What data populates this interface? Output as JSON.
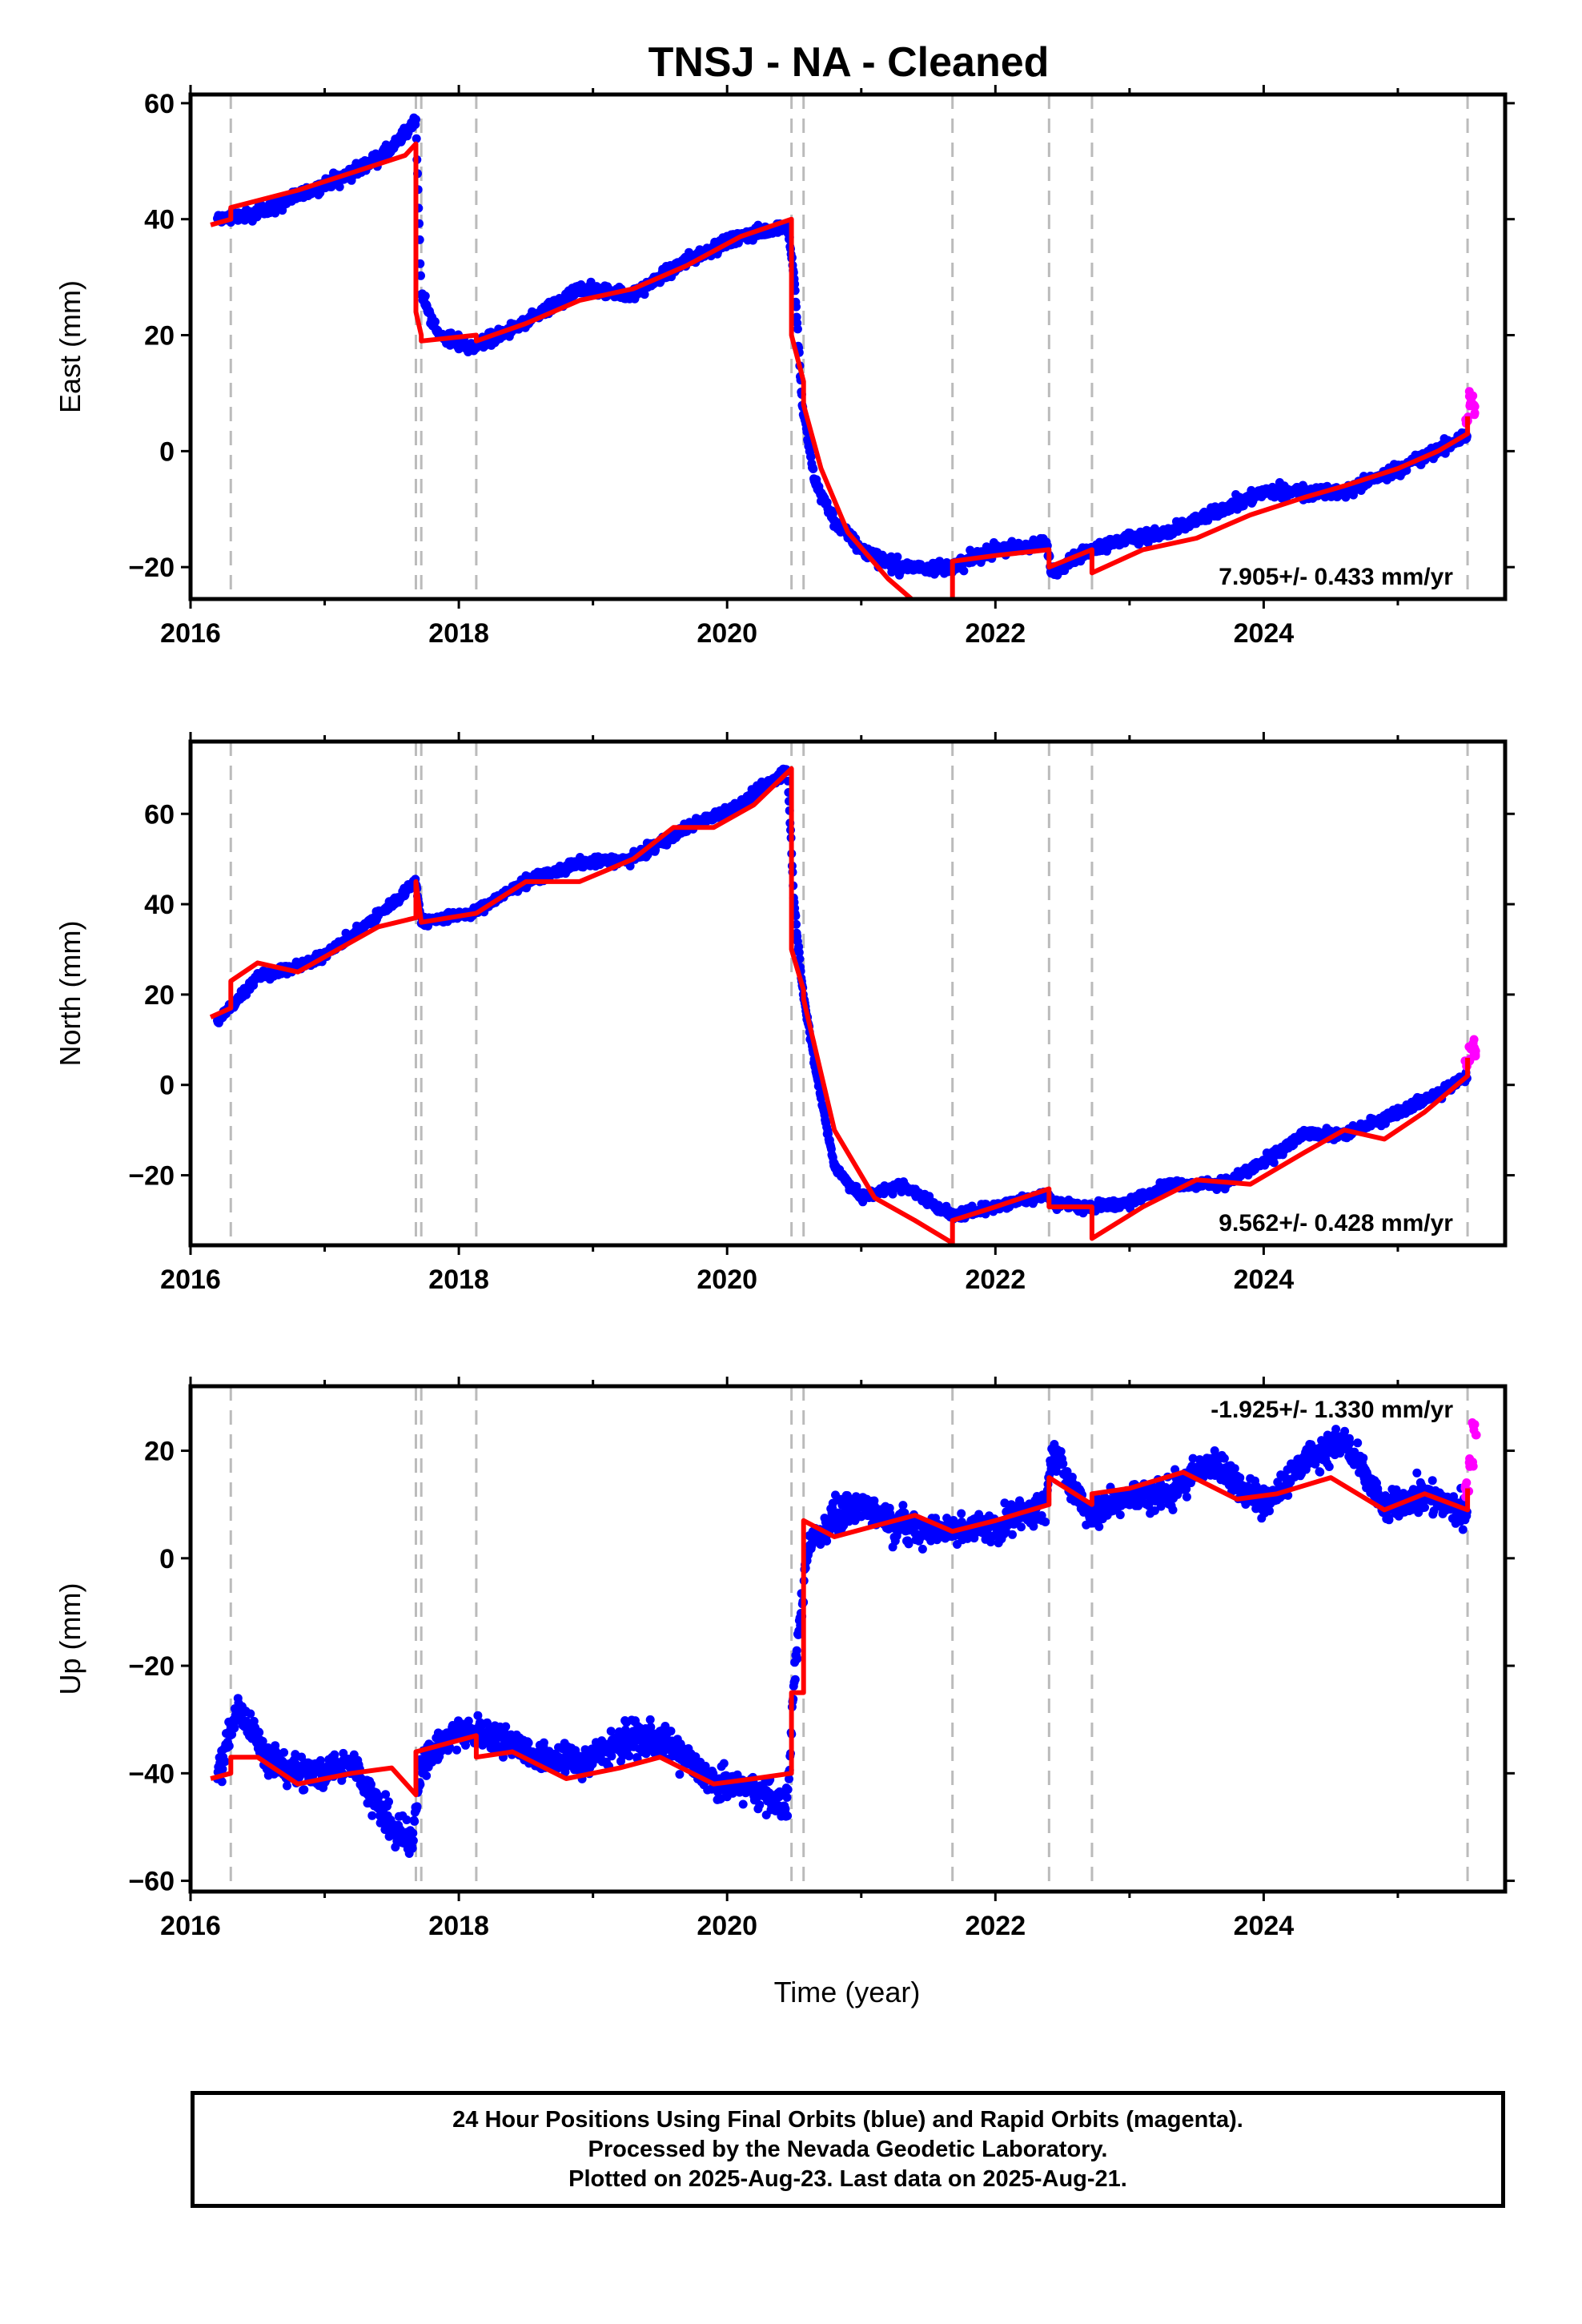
{
  "colors": {
    "final_points": "#0000ff",
    "rapid_points": "#ff00ff",
    "model": "#ff0000",
    "event_lines": "#bbbbbb"
  },
  "chart_data": {
    "type": "scatter",
    "title": "TNSJ  - NA - Cleaned",
    "xlabel": "Time (year)",
    "xlim": [
      2016.0,
      2025.8
    ],
    "x_ticks": [
      2016,
      2018,
      2020,
      2022,
      2024
    ],
    "event_lines_year": [
      2016.3,
      2017.68,
      2017.72,
      2018.13,
      2020.48,
      2020.57,
      2021.68,
      2022.4,
      2022.72,
      2025.52
    ],
    "panels": [
      {
        "name": "east",
        "ylabel": "East (mm)",
        "ylim": [
          -25.5,
          61.5
        ],
        "y_ticks": [
          -20,
          0,
          20,
          40,
          60
        ],
        "rate_label": "7.905+/- 0.433 mm/yr",
        "points_final": [
          [
            2016.2,
            40
          ],
          [
            2016.5,
            41
          ],
          [
            2016.9,
            45
          ],
          [
            2017.2,
            48
          ],
          [
            2017.5,
            52
          ],
          [
            2017.68,
            57
          ],
          [
            2017.72,
            27
          ],
          [
            2017.85,
            20
          ],
          [
            2018.1,
            18
          ],
          [
            2018.5,
            22
          ],
          [
            2018.9,
            28
          ],
          [
            2019.3,
            27
          ],
          [
            2019.7,
            33
          ],
          [
            2020.1,
            37
          ],
          [
            2020.45,
            39
          ],
          [
            2020.5,
            30
          ],
          [
            2020.56,
            8
          ],
          [
            2020.65,
            -5
          ],
          [
            2020.8,
            -12
          ],
          [
            2021.0,
            -17
          ],
          [
            2021.3,
            -20
          ],
          [
            2021.68,
            -20
          ],
          [
            2022.0,
            -17
          ],
          [
            2022.38,
            -16
          ],
          [
            2022.42,
            -21
          ],
          [
            2022.7,
            -17
          ],
          [
            2023.0,
            -15
          ],
          [
            2023.3,
            -14
          ],
          [
            2023.7,
            -10
          ],
          [
            2024.0,
            -7
          ],
          [
            2024.3,
            -7
          ],
          [
            2024.6,
            -7
          ],
          [
            2025.0,
            -3
          ],
          [
            2025.3,
            0
          ],
          [
            2025.52,
            3
          ]
        ],
        "points_rapid": [
          [
            2025.52,
            5
          ],
          [
            2025.55,
            9
          ],
          [
            2025.57,
            7
          ]
        ],
        "model": [
          [
            2016.15,
            39
          ],
          [
            2016.3,
            40
          ],
          [
            2016.3,
            42
          ],
          [
            2016.8,
            45
          ],
          [
            2017.2,
            48
          ],
          [
            2017.6,
            51
          ],
          [
            2017.68,
            53
          ],
          [
            2017.68,
            24
          ],
          [
            2017.72,
            20
          ],
          [
            2017.72,
            19
          ],
          [
            2018.13,
            20
          ],
          [
            2018.13,
            19
          ],
          [
            2018.5,
            22
          ],
          [
            2018.9,
            26
          ],
          [
            2019.3,
            28
          ],
          [
            2019.7,
            32
          ],
          [
            2020.1,
            37
          ],
          [
            2020.48,
            40
          ],
          [
            2020.48,
            20
          ],
          [
            2020.57,
            12
          ],
          [
            2020.57,
            8
          ],
          [
            2020.7,
            -3
          ],
          [
            2020.9,
            -14
          ],
          [
            2021.2,
            -22
          ],
          [
            2021.5,
            -28
          ],
          [
            2021.68,
            -30
          ],
          [
            2021.68,
            -19
          ],
          [
            2022.0,
            -18
          ],
          [
            2022.4,
            -17
          ],
          [
            2022.4,
            -20
          ],
          [
            2022.72,
            -17
          ],
          [
            2022.72,
            -21
          ],
          [
            2023.1,
            -17
          ],
          [
            2023.5,
            -15
          ],
          [
            2023.9,
            -11
          ],
          [
            2024.3,
            -8
          ],
          [
            2024.6,
            -6
          ],
          [
            2025.0,
            -3
          ],
          [
            2025.3,
            0
          ],
          [
            2025.52,
            3
          ],
          [
            2025.52,
            6
          ]
        ]
      },
      {
        "name": "north",
        "ylabel": "North (mm)",
        "ylim": [
          -35.5,
          76
        ],
        "y_ticks": [
          -20,
          0,
          20,
          40,
          60
        ],
        "rate_label": "9.562+/- 0.428 mm/yr",
        "points_final": [
          [
            2016.2,
            14
          ],
          [
            2016.5,
            24
          ],
          [
            2016.9,
            27
          ],
          [
            2017.2,
            33
          ],
          [
            2017.5,
            40
          ],
          [
            2017.68,
            45
          ],
          [
            2017.72,
            36
          ],
          [
            2018.1,
            38
          ],
          [
            2018.5,
            45
          ],
          [
            2018.9,
            49
          ],
          [
            2019.3,
            50
          ],
          [
            2019.7,
            57
          ],
          [
            2020.1,
            62
          ],
          [
            2020.45,
            70
          ],
          [
            2020.5,
            40
          ],
          [
            2020.56,
            22
          ],
          [
            2020.65,
            5
          ],
          [
            2020.8,
            -18
          ],
          [
            2021.0,
            -25
          ],
          [
            2021.3,
            -22
          ],
          [
            2021.68,
            -29
          ],
          [
            2022.0,
            -27
          ],
          [
            2022.38,
            -24
          ],
          [
            2022.42,
            -26
          ],
          [
            2022.7,
            -27
          ],
          [
            2023.0,
            -26
          ],
          [
            2023.3,
            -22
          ],
          [
            2023.7,
            -22
          ],
          [
            2024.0,
            -17
          ],
          [
            2024.3,
            -11
          ],
          [
            2024.6,
            -11
          ],
          [
            2025.0,
            -6
          ],
          [
            2025.3,
            -2
          ],
          [
            2025.52,
            2
          ]
        ],
        "points_rapid": [
          [
            2025.52,
            5
          ],
          [
            2025.55,
            9
          ],
          [
            2025.57,
            7
          ]
        ],
        "model": [
          [
            2016.15,
            15
          ],
          [
            2016.3,
            17
          ],
          [
            2016.3,
            23
          ],
          [
            2016.5,
            27
          ],
          [
            2016.8,
            25
          ],
          [
            2017.1,
            30
          ],
          [
            2017.4,
            35
          ],
          [
            2017.68,
            37
          ],
          [
            2017.68,
            45
          ],
          [
            2017.72,
            36
          ],
          [
            2018.13,
            38
          ],
          [
            2018.5,
            45
          ],
          [
            2018.9,
            45
          ],
          [
            2019.3,
            50
          ],
          [
            2019.6,
            57
          ],
          [
            2019.9,
            57
          ],
          [
            2020.2,
            62
          ],
          [
            2020.48,
            70
          ],
          [
            2020.48,
            30
          ],
          [
            2020.57,
            21
          ],
          [
            2020.57,
            19
          ],
          [
            2020.8,
            -10
          ],
          [
            2021.1,
            -25
          ],
          [
            2021.4,
            -30
          ],
          [
            2021.68,
            -35
          ],
          [
            2021.68,
            -30
          ],
          [
            2022.0,
            -27
          ],
          [
            2022.4,
            -23
          ],
          [
            2022.4,
            -27
          ],
          [
            2022.72,
            -27
          ],
          [
            2022.72,
            -34
          ],
          [
            2023.1,
            -27
          ],
          [
            2023.5,
            -21
          ],
          [
            2023.9,
            -22
          ],
          [
            2024.3,
            -15
          ],
          [
            2024.6,
            -10
          ],
          [
            2024.9,
            -12
          ],
          [
            2025.2,
            -6
          ],
          [
            2025.52,
            2
          ],
          [
            2025.52,
            6
          ]
        ]
      },
      {
        "name": "up",
        "ylabel": "Up (mm)",
        "ylim": [
          -62,
          32
        ],
        "y_ticks": [
          -60,
          -40,
          -20,
          0,
          20
        ],
        "rate_label": "-1.925+/- 1.330 mm/yr",
        "points_final": [
          [
            2016.2,
            -40
          ],
          [
            2016.35,
            -28
          ],
          [
            2016.6,
            -38
          ],
          [
            2016.9,
            -40
          ],
          [
            2017.2,
            -38
          ],
          [
            2017.5,
            -50
          ],
          [
            2017.65,
            -53
          ],
          [
            2017.72,
            -38
          ],
          [
            2018.0,
            -32
          ],
          [
            2018.3,
            -33
          ],
          [
            2018.6,
            -37
          ],
          [
            2018.9,
            -38
          ],
          [
            2019.3,
            -33
          ],
          [
            2019.6,
            -35
          ],
          [
            2019.9,
            -42
          ],
          [
            2020.2,
            -43
          ],
          [
            2020.45,
            -46
          ],
          [
            2020.5,
            -22
          ],
          [
            2020.6,
            2
          ],
          [
            2020.8,
            8
          ],
          [
            2021.0,
            10
          ],
          [
            2021.3,
            6
          ],
          [
            2021.68,
            5
          ],
          [
            2022.0,
            6
          ],
          [
            2022.38,
            10
          ],
          [
            2022.42,
            20
          ],
          [
            2022.7,
            8
          ],
          [
            2023.0,
            12
          ],
          [
            2023.3,
            12
          ],
          [
            2023.6,
            18
          ],
          [
            2024.0,
            10
          ],
          [
            2024.3,
            18
          ],
          [
            2024.6,
            22
          ],
          [
            2024.9,
            9
          ],
          [
            2025.2,
            12
          ],
          [
            2025.52,
            8
          ]
        ],
        "points_rapid": [
          [
            2025.52,
            13
          ],
          [
            2025.55,
            18
          ],
          [
            2025.57,
            24
          ]
        ],
        "model": [
          [
            2016.15,
            -41
          ],
          [
            2016.3,
            -40
          ],
          [
            2016.3,
            -37
          ],
          [
            2016.5,
            -37
          ],
          [
            2016.8,
            -42
          ],
          [
            2017.2,
            -40
          ],
          [
            2017.5,
            -39
          ],
          [
            2017.68,
            -44
          ],
          [
            2017.68,
            -36
          ],
          [
            2018.13,
            -33
          ],
          [
            2018.13,
            -37
          ],
          [
            2018.4,
            -36
          ],
          [
            2018.8,
            -41
          ],
          [
            2019.2,
            -39
          ],
          [
            2019.5,
            -37
          ],
          [
            2019.9,
            -42
          ],
          [
            2020.2,
            -41
          ],
          [
            2020.48,
            -40
          ],
          [
            2020.48,
            -25
          ],
          [
            2020.57,
            -25
          ],
          [
            2020.57,
            7
          ],
          [
            2020.8,
            4
          ],
          [
            2021.1,
            6
          ],
          [
            2021.4,
            8
          ],
          [
            2021.68,
            5
          ],
          [
            2021.68,
            5
          ],
          [
            2022.0,
            7
          ],
          [
            2022.4,
            10
          ],
          [
            2022.4,
            15
          ],
          [
            2022.72,
            10
          ],
          [
            2022.72,
            12
          ],
          [
            2023.0,
            13
          ],
          [
            2023.4,
            16
          ],
          [
            2023.8,
            11
          ],
          [
            2024.1,
            12
          ],
          [
            2024.5,
            15
          ],
          [
            2024.9,
            9
          ],
          [
            2025.2,
            12
          ],
          [
            2025.52,
            9
          ],
          [
            2025.52,
            13
          ]
        ]
      }
    ]
  },
  "footer": {
    "line1": "24 Hour Positions Using Final Orbits (blue) and Rapid Orbits (magenta).",
    "line2": "Processed by the Nevada Geodetic Laboratory.",
    "line3": "Plotted on 2025-Aug-23. Last data on 2025-Aug-21."
  }
}
